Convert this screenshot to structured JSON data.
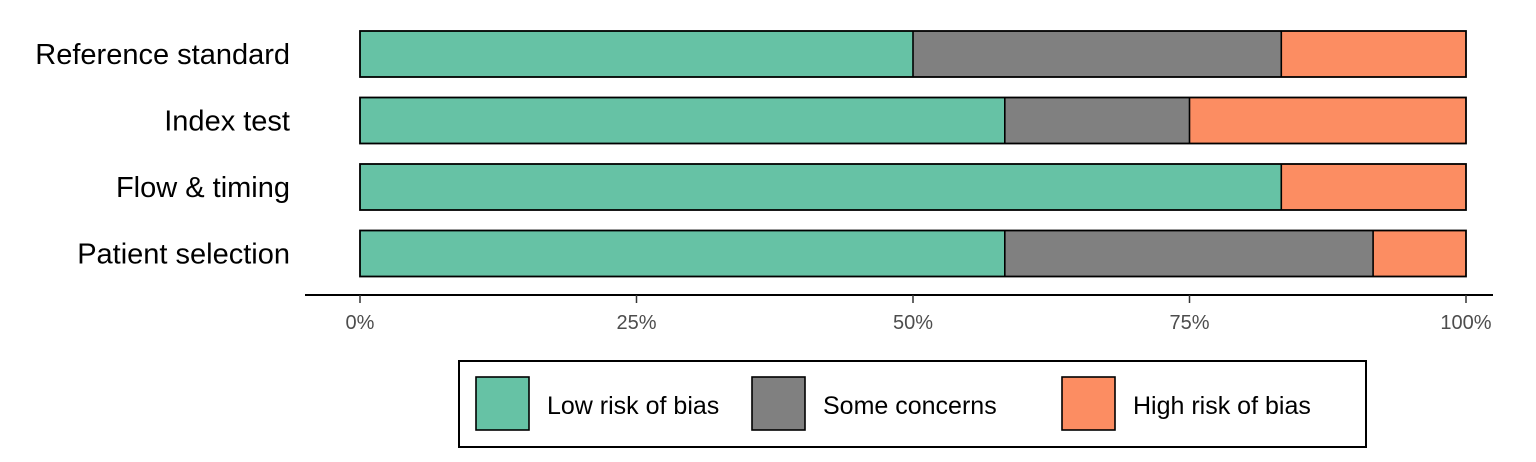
{
  "chart_data": {
    "type": "bar",
    "orientation": "horizontal",
    "stacked": true,
    "title": "",
    "xlabel": "",
    "ylabel": "",
    "categories": [
      "Reference standard",
      "Index test",
      "Flow & timing",
      "Patient selection"
    ],
    "series": [
      {
        "name": "Low risk of bias",
        "color": "#66c2a5",
        "values": [
          50.0,
          58.3,
          83.3,
          58.3
        ]
      },
      {
        "name": "Some concerns",
        "color": "#808080",
        "values": [
          33.3,
          16.7,
          0.0,
          33.3
        ]
      },
      {
        "name": "High risk of bias",
        "color": "#fc8d62",
        "values": [
          16.7,
          25.0,
          16.7,
          8.4
        ]
      }
    ],
    "xlim": [
      0,
      100
    ],
    "x_ticks": [
      0,
      25,
      50,
      75,
      100
    ],
    "x_tick_labels": [
      "0%",
      "25%",
      "50%",
      "75%",
      "100%"
    ],
    "grid": false,
    "legend_position": "bottom"
  }
}
